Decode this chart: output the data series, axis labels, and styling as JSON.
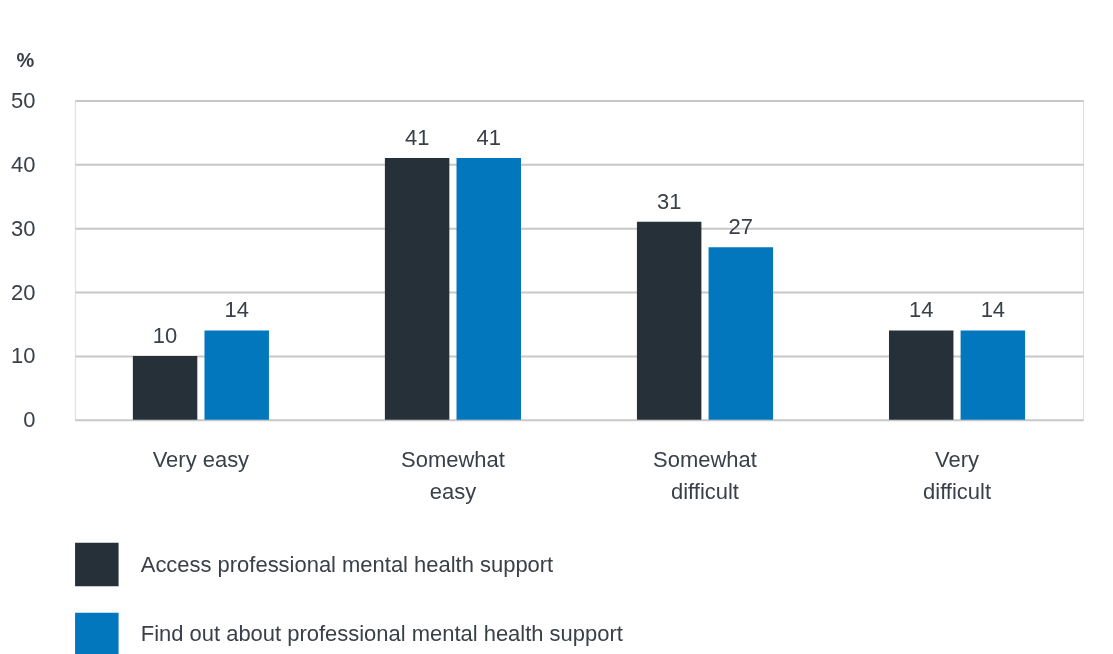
{
  "chart_data": {
    "type": "bar",
    "ylabel": "%",
    "categories": [
      "Very easy",
      "Somewhat\neasy",
      "Somewhat\ndifficult",
      "Very\ndifficult"
    ],
    "series": [
      {
        "name": "Access professional mental health support",
        "color": "#263038",
        "values": [
          10,
          41,
          31,
          14
        ]
      },
      {
        "name": "Find out about professional mental health support",
        "color": "#0277bd",
        "values": [
          14,
          41,
          27,
          14
        ]
      }
    ],
    "ylim": [
      0,
      50
    ],
    "yticks": [
      0,
      10,
      20,
      30,
      40,
      50
    ],
    "grid": "y",
    "legend": "bottom",
    "data_labels": true
  }
}
